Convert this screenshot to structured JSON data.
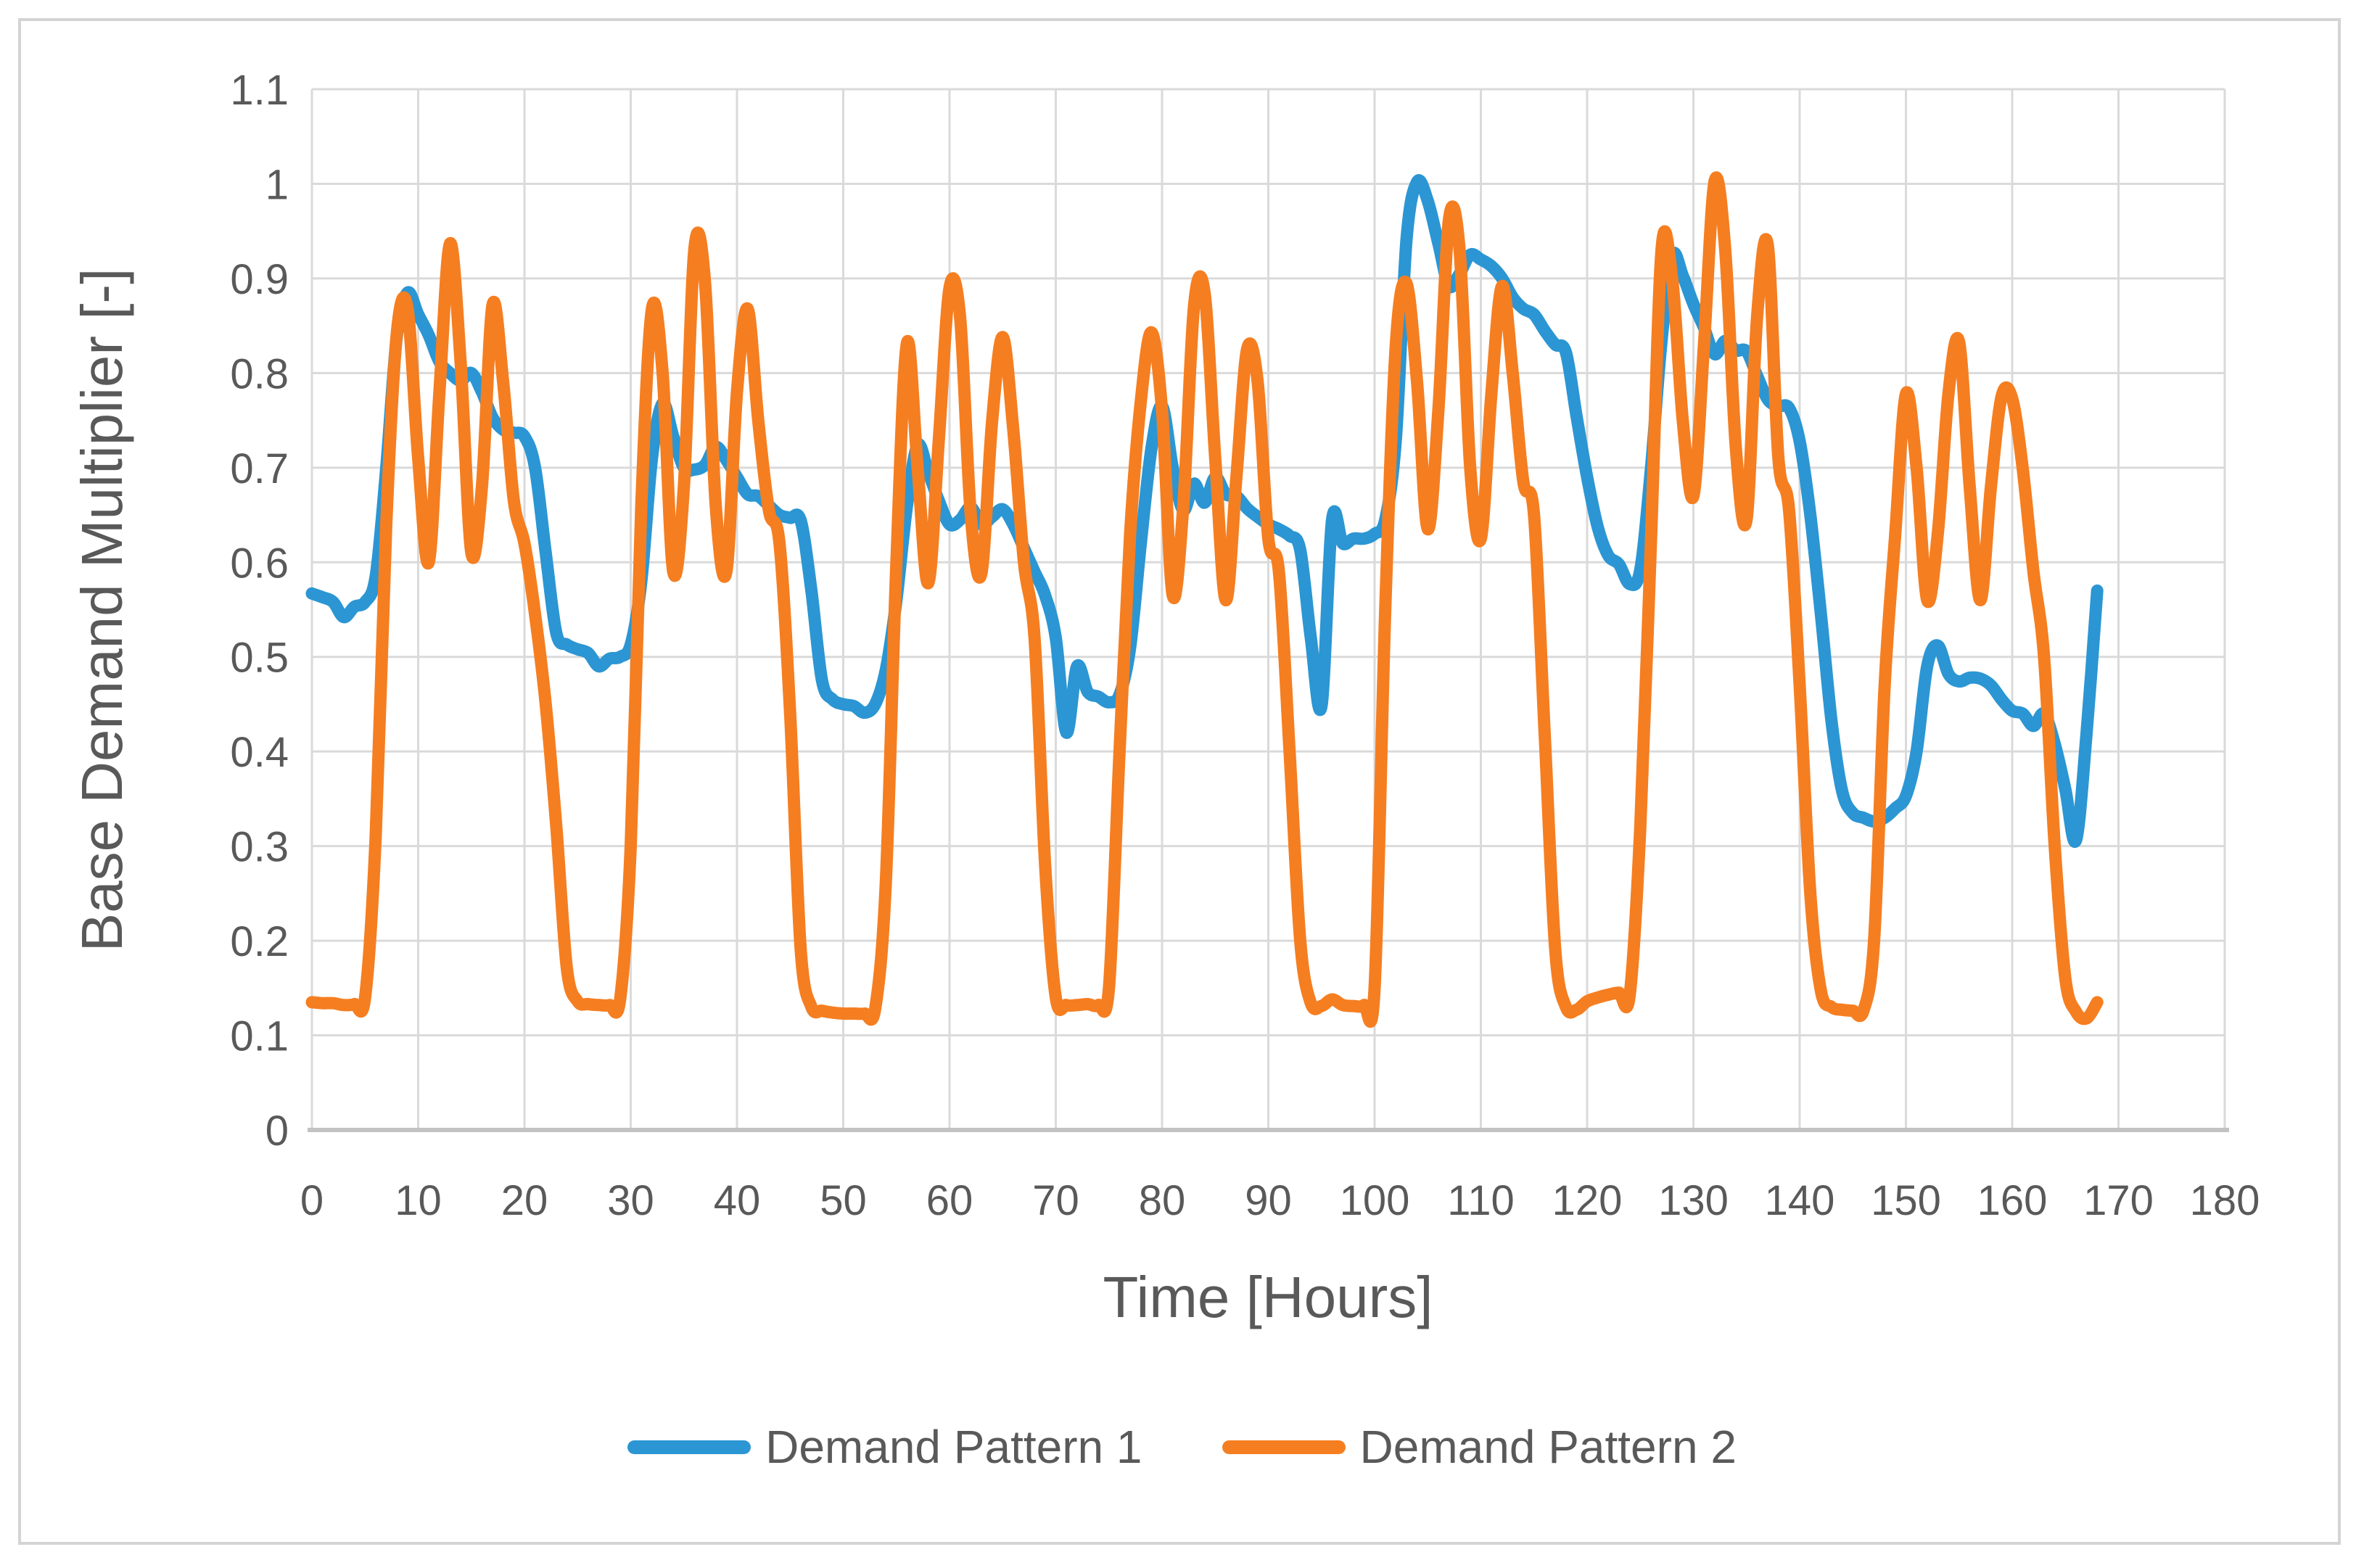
{
  "window": {
    "background": "#ffffff",
    "border_color": "#D4D4D4"
  },
  "styles": {
    "grid_color": "#DADADA",
    "axis_line_color": "#C2C2C2",
    "label_color": "#595959"
  },
  "chart_data": {
    "type": "line",
    "title": "",
    "xlabel": "Time [Hours]",
    "ylabel": "Base Demand Multiplier [-]",
    "xlim": [
      0,
      180
    ],
    "ylim": [
      0,
      1.1
    ],
    "grid": true,
    "legend_position": "bottom",
    "x_ticks": [
      0,
      10,
      20,
      30,
      40,
      50,
      60,
      70,
      80,
      90,
      100,
      110,
      120,
      130,
      140,
      150,
      160,
      170,
      180
    ],
    "y_ticks": [
      0,
      0.1,
      0.2,
      0.3,
      0.4,
      0.5,
      0.6,
      0.7,
      0.8,
      0.9,
      1.0,
      1.1
    ],
    "y_tick_labels": [
      "0",
      "0.1",
      "0.2",
      "0.3",
      "0.4",
      "0.5",
      "0.6",
      "0.7",
      "0.8",
      "0.9",
      "1",
      "1.1"
    ],
    "x_start": 0,
    "x_step": 1,
    "series": [
      {
        "name": "Demand Pattern 1",
        "color": "#2B96D3",
        "values": [
          0.567,
          0.563,
          0.558,
          0.542,
          0.553,
          0.558,
          0.585,
          0.7,
          0.84,
          0.885,
          0.862,
          0.84,
          0.812,
          0.8,
          0.792,
          0.8,
          0.78,
          0.753,
          0.74,
          0.737,
          0.733,
          0.7,
          0.61,
          0.525,
          0.513,
          0.508,
          0.504,
          0.49,
          0.498,
          0.5,
          0.513,
          0.58,
          0.71,
          0.768,
          0.733,
          0.7,
          0.698,
          0.703,
          0.722,
          0.708,
          0.69,
          0.672,
          0.67,
          0.66,
          0.65,
          0.647,
          0.644,
          0.57,
          0.475,
          0.455,
          0.45,
          0.448,
          0.441,
          0.45,
          0.486,
          0.56,
          0.66,
          0.724,
          0.695,
          0.665,
          0.64,
          0.645,
          0.658,
          0.64,
          0.648,
          0.656,
          0.64,
          0.615,
          0.59,
          0.565,
          0.52,
          0.42,
          0.49,
          0.463,
          0.458,
          0.452,
          0.46,
          0.51,
          0.62,
          0.72,
          0.765,
          0.7,
          0.655,
          0.683,
          0.663,
          0.69,
          0.672,
          0.67,
          0.657,
          0.648,
          0.64,
          0.635,
          0.628,
          0.613,
          0.52,
          0.448,
          0.645,
          0.62,
          0.625,
          0.625,
          0.63,
          0.645,
          0.73,
          0.94,
          1.002,
          0.982,
          0.937,
          0.892,
          0.905,
          0.925,
          0.92,
          0.913,
          0.9,
          0.88,
          0.868,
          0.862,
          0.845,
          0.83,
          0.822,
          0.755,
          0.69,
          0.637,
          0.607,
          0.598,
          0.577,
          0.592,
          0.698,
          0.834,
          0.924,
          0.903,
          0.873,
          0.848,
          0.82,
          0.834,
          0.824,
          0.823,
          0.797,
          0.772,
          0.765,
          0.763,
          0.728,
          0.65,
          0.545,
          0.432,
          0.358,
          0.335,
          0.33,
          0.326,
          0.33,
          0.34,
          0.353,
          0.4,
          0.49,
          0.512,
          0.482,
          0.474,
          0.478,
          0.477,
          0.47,
          0.455,
          0.443,
          0.44,
          0.427,
          0.44,
          0.408,
          0.36,
          0.306,
          0.42,
          0.57
        ]
      },
      {
        "name": "Demand Pattern 2",
        "color": "#F57E21",
        "values": [
          0.135,
          0.134,
          0.134,
          0.132,
          0.133,
          0.14,
          0.31,
          0.64,
          0.843,
          0.868,
          0.71,
          0.6,
          0.78,
          0.937,
          0.81,
          0.61,
          0.68,
          0.872,
          0.79,
          0.665,
          0.62,
          0.545,
          0.45,
          0.32,
          0.17,
          0.136,
          0.133,
          0.132,
          0.132,
          0.138,
          0.3,
          0.66,
          0.868,
          0.8,
          0.59,
          0.68,
          0.932,
          0.895,
          0.66,
          0.59,
          0.78,
          0.868,
          0.75,
          0.655,
          0.62,
          0.44,
          0.19,
          0.13,
          0.126,
          0.124,
          0.123,
          0.123,
          0.123,
          0.128,
          0.26,
          0.6,
          0.832,
          0.7,
          0.578,
          0.73,
          0.89,
          0.858,
          0.65,
          0.588,
          0.748,
          0.838,
          0.74,
          0.6,
          0.52,
          0.28,
          0.14,
          0.132,
          0.132,
          0.133,
          0.132,
          0.15,
          0.4,
          0.63,
          0.77,
          0.843,
          0.76,
          0.565,
          0.66,
          0.87,
          0.885,
          0.71,
          0.56,
          0.69,
          0.825,
          0.79,
          0.625,
          0.59,
          0.4,
          0.2,
          0.134,
          0.131,
          0.138,
          0.132,
          0.131,
          0.132,
          0.15,
          0.55,
          0.83,
          0.895,
          0.79,
          0.635,
          0.76,
          0.962,
          0.93,
          0.7,
          0.625,
          0.78,
          0.892,
          0.8,
          0.685,
          0.65,
          0.42,
          0.19,
          0.13,
          0.127,
          0.136,
          0.14,
          0.143,
          0.145,
          0.142,
          0.32,
          0.62,
          0.93,
          0.9,
          0.75,
          0.67,
          0.83,
          1.003,
          0.93,
          0.72,
          0.645,
          0.86,
          0.935,
          0.71,
          0.655,
          0.47,
          0.25,
          0.147,
          0.13,
          0.127,
          0.126,
          0.126,
          0.2,
          0.47,
          0.63,
          0.778,
          0.7,
          0.56,
          0.63,
          0.778,
          0.833,
          0.68,
          0.56,
          0.68,
          0.775,
          0.773,
          0.698,
          0.59,
          0.5,
          0.3,
          0.16,
          0.125,
          0.118,
          0.135
        ]
      }
    ]
  }
}
